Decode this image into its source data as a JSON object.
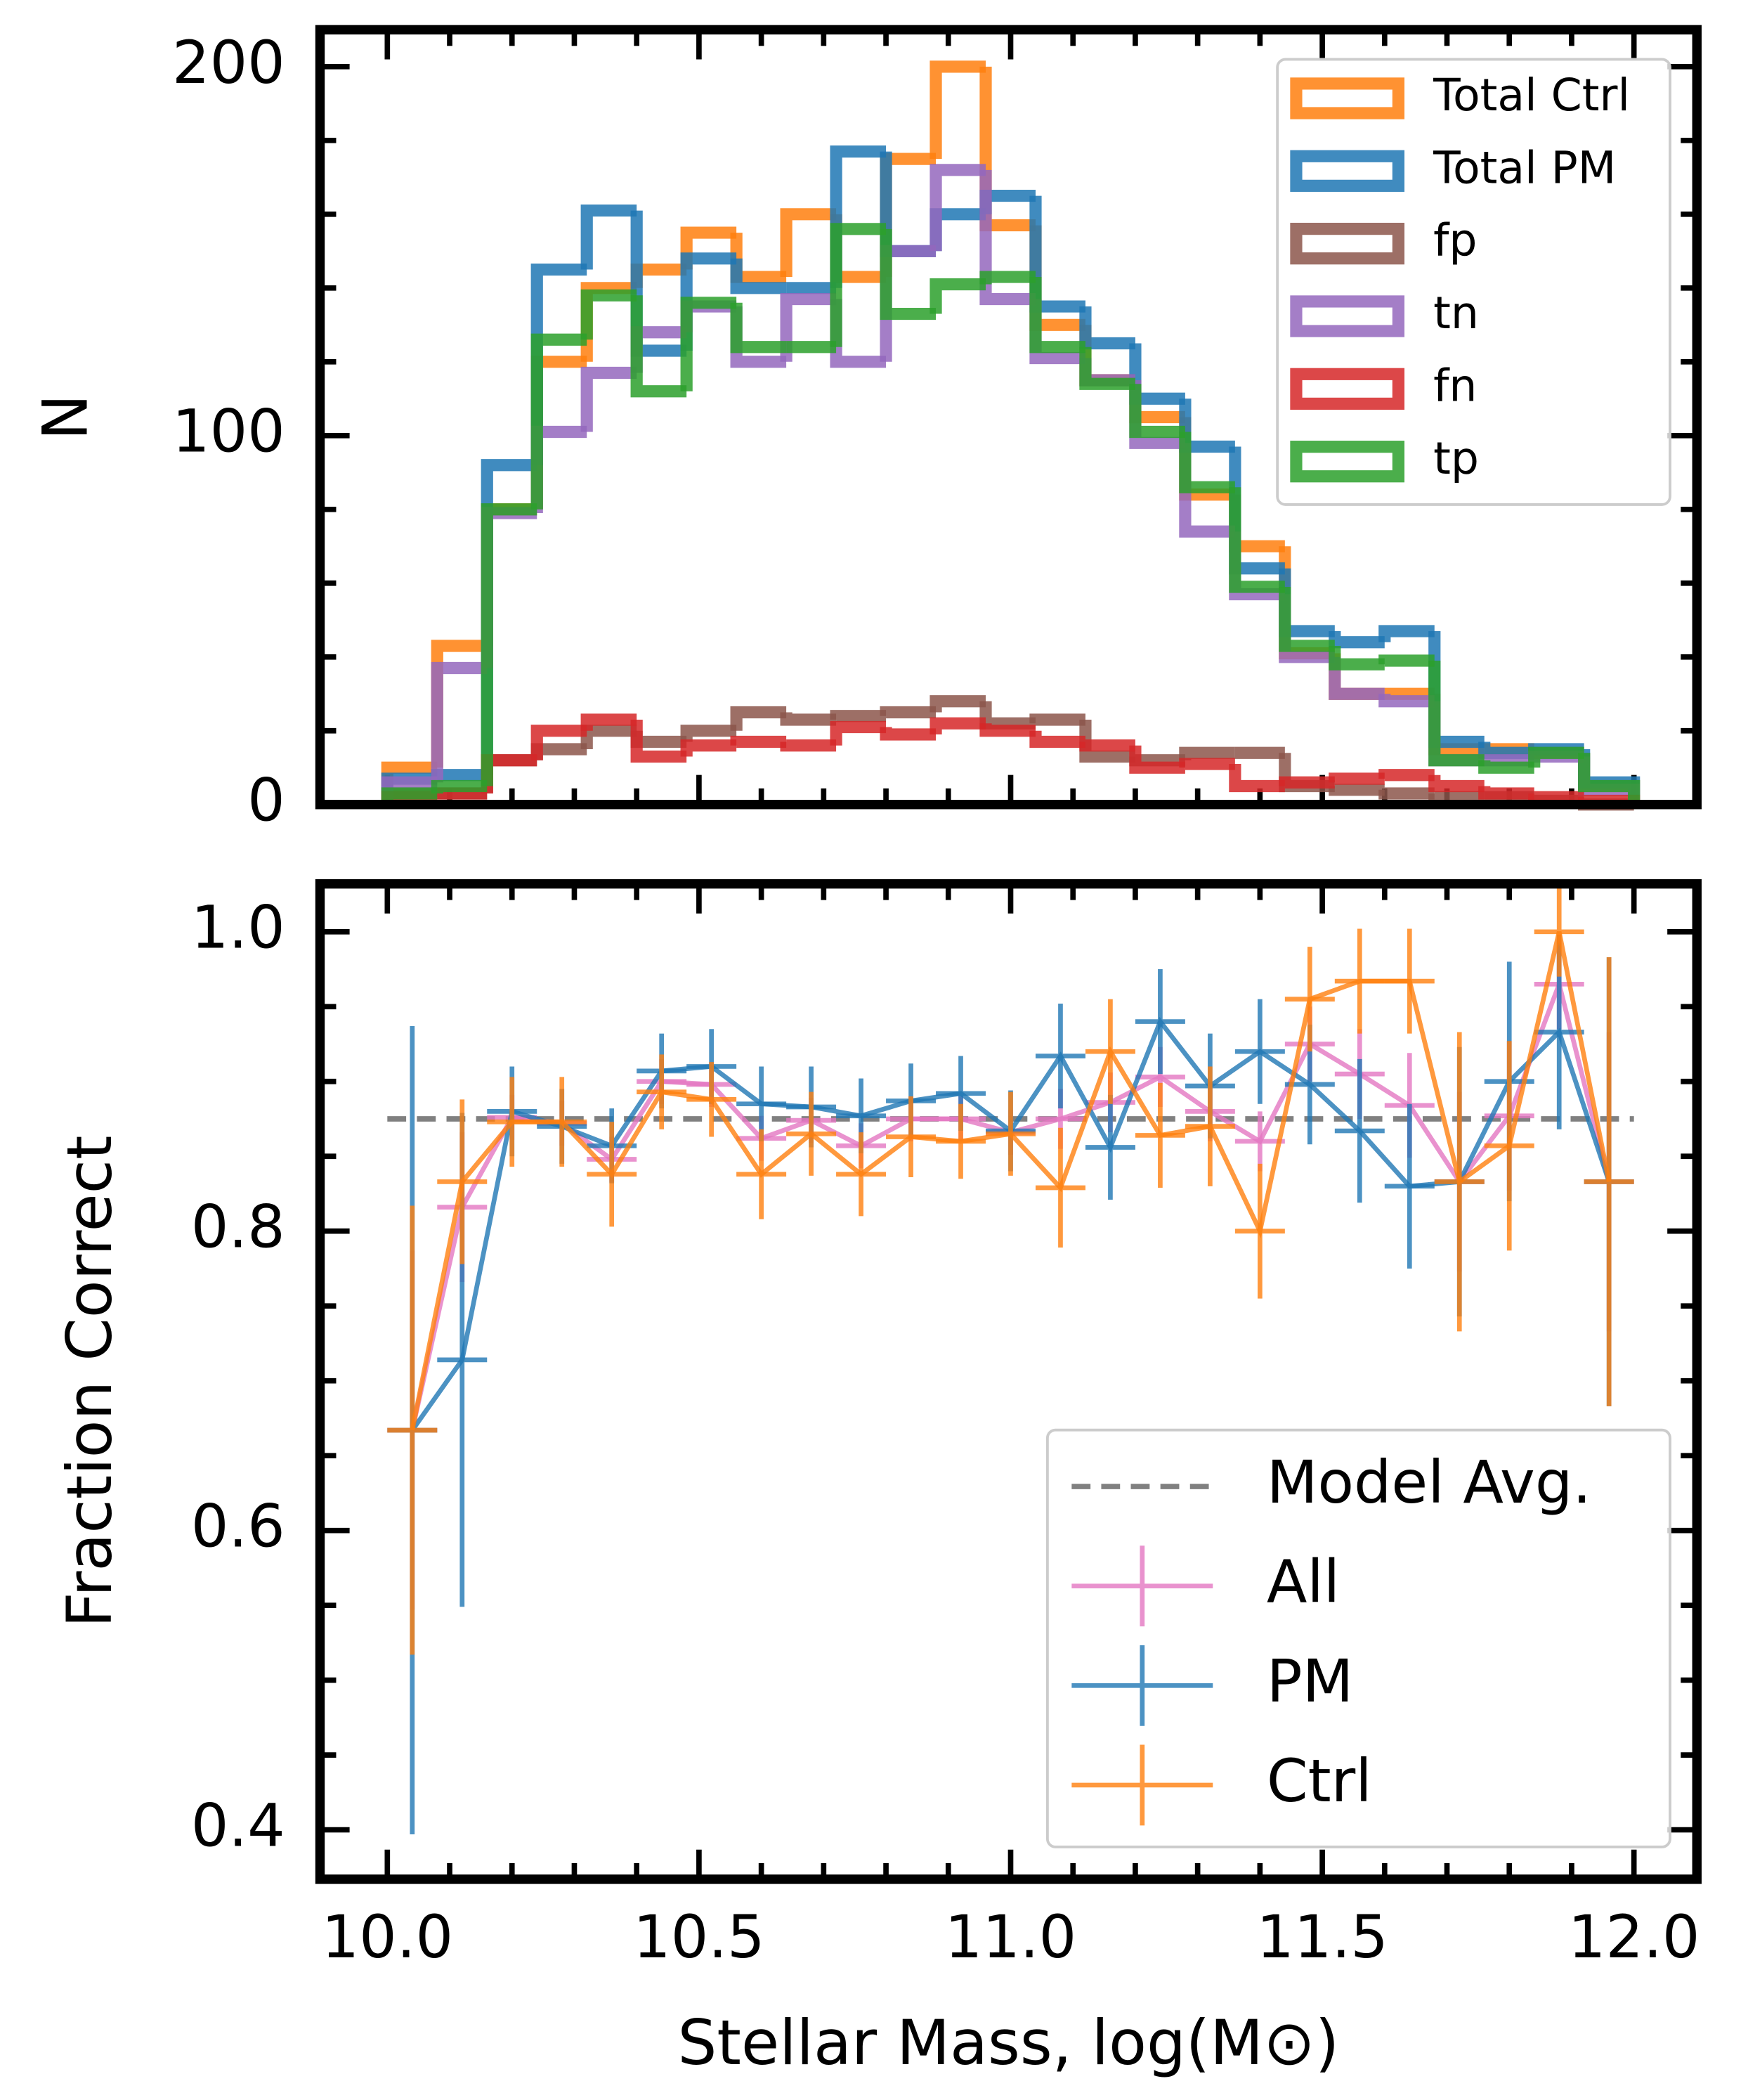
{
  "chart_data": [
    {
      "type": "histogram",
      "ylabel": "N",
      "bins": [
        10.0,
        10.08,
        10.16,
        10.24,
        10.32,
        10.4,
        10.48,
        10.56,
        10.64,
        10.72,
        10.8,
        10.88,
        10.96,
        11.04,
        11.12,
        11.2,
        11.28,
        11.36,
        11.44,
        11.52,
        11.6,
        11.68,
        11.76,
        11.84,
        11.92,
        12.0
      ],
      "series": [
        {
          "name": "Total Ctrl",
          "color": "#ff7f0e",
          "values": [
            10,
            43,
            80,
            120,
            140,
            145,
            155,
            143,
            160,
            143,
            175,
            200,
            157,
            130,
            115,
            105,
            84,
            70,
            41,
            30,
            30,
            15,
            15,
            14,
            5
          ]
        },
        {
          "name": "Total PM",
          "color": "#1f77b4",
          "values": [
            7,
            8,
            92,
            145,
            161,
            123,
            148,
            140,
            140,
            177,
            150,
            160,
            165,
            135,
            125,
            110,
            97,
            64,
            47,
            44,
            47,
            17,
            14,
            15,
            6
          ]
        },
        {
          "name": "fp",
          "color": "#8c564b",
          "values": [
            3,
            3,
            12,
            15,
            20,
            17,
            20,
            25,
            23,
            24,
            25,
            28,
            22,
            23,
            13,
            12,
            14,
            14,
            5,
            4,
            3,
            2,
            2,
            1,
            0
          ]
        },
        {
          "name": "tn",
          "color": "#9467bd",
          "values": [
            6,
            37,
            79,
            101,
            117,
            128,
            135,
            120,
            137,
            120,
            150,
            172,
            137,
            121,
            115,
            98,
            74,
            57,
            40,
            30,
            28,
            12,
            12,
            13,
            4
          ]
        },
        {
          "name": "fn",
          "color": "#d62728",
          "values": [
            2,
            3,
            12,
            20,
            23,
            13,
            16,
            17,
            16,
            21,
            19,
            22,
            20,
            17,
            16,
            10,
            11,
            5,
            6,
            7,
            8,
            5,
            3,
            2,
            1
          ]
        },
        {
          "name": "tp",
          "color": "#2ca02c",
          "values": [
            3,
            5,
            80,
            126,
            138,
            112,
            136,
            124,
            124,
            156,
            133,
            141,
            143,
            124,
            114,
            101,
            86,
            59,
            43,
            38,
            39,
            12,
            10,
            14,
            5
          ]
        }
      ],
      "xlim": [
        9.892,
        12.101
      ],
      "ylim": [
        0,
        210
      ],
      "xticks": [
        10,
        10.5,
        11,
        11.5,
        12
      ],
      "x_minor_ticks": [
        10.1,
        10.2,
        10.3,
        10.4,
        10.6,
        10.7,
        10.8,
        10.9,
        11.1,
        11.2,
        11.3,
        11.4,
        11.6,
        11.7,
        11.8,
        11.9
      ],
      "yticks": [
        0,
        100,
        200
      ],
      "y_minor_ticks": [
        20,
        40,
        60,
        80,
        120,
        140,
        160,
        180
      ],
      "legend": "upper right"
    },
    {
      "type": "errorbar",
      "xlabel": "Stellar Mass, log(M⊙)",
      "ylabel": "Fraction Correct",
      "x": [
        10.04,
        10.12,
        10.2,
        10.28,
        10.36,
        10.44,
        10.52,
        10.6,
        10.68,
        10.76,
        10.84,
        10.92,
        11.0,
        11.08,
        11.16,
        11.24,
        11.32,
        11.4,
        11.48,
        11.56,
        11.64,
        11.72,
        11.8,
        11.88,
        11.96
      ],
      "xerr": 0.04,
      "series": [
        {
          "name": "All",
          "color": "#e377c2",
          "values": [
            0.667,
            0.816,
            0.876,
            0.872,
            0.848,
            0.9,
            0.898,
            0.862,
            0.874,
            0.857,
            0.875,
            0.875,
            0.866,
            0.875,
            0.886,
            0.903,
            0.88,
            0.86,
            0.925,
            0.905,
            0.884,
            0.833,
            0.877,
            0.965,
            0.833
          ],
          "errors": [
            0.12,
            0.05,
            0.015,
            0.015,
            0.015,
            0.015,
            0.015,
            0.015,
            0.015,
            0.015,
            0.015,
            0.015,
            0.015,
            0.02,
            0.02,
            0.02,
            0.02,
            0.02,
            0.025,
            0.03,
            0.035,
            0.06,
            0.05,
            0.03,
            0.1
          ]
        },
        {
          "name": "PM",
          "color": "#1f77b4",
          "values": [
            0.667,
            0.714,
            0.88,
            0.87,
            0.857,
            0.907,
            0.91,
            0.885,
            0.883,
            0.877,
            0.887,
            0.892,
            0.867,
            0.917,
            0.856,
            0.94,
            0.897,
            0.92,
            0.898,
            0.867,
            0.83,
            0.833,
            0.9,
            0.933,
            0.833
          ],
          "errors": [
            0.27,
            0.165,
            0.03,
            0.025,
            0.025,
            0.025,
            0.025,
            0.025,
            0.027,
            0.025,
            0.025,
            0.025,
            0.027,
            0.035,
            0.035,
            0.035,
            0.035,
            0.035,
            0.04,
            0.048,
            0.055,
            0.09,
            0.08,
            0.065,
            0.15
          ]
        },
        {
          "name": "Ctrl",
          "color": "#ff7f0e",
          "values": [
            0.667,
            0.833,
            0.873,
            0.873,
            0.838,
            0.893,
            0.888,
            0.838,
            0.865,
            0.838,
            0.863,
            0.86,
            0.865,
            0.829,
            0.92,
            0.864,
            0.87,
            0.8,
            0.955,
            0.967,
            0.967,
            0.833,
            0.857,
            1.0,
            0.833
          ],
          "errors": [
            0.15,
            0.055,
            0.03,
            0.03,
            0.035,
            0.025,
            0.025,
            0.03,
            0.028,
            0.028,
            0.027,
            0.025,
            0.028,
            0.04,
            0.035,
            0.035,
            0.04,
            0.045,
            0.035,
            0.035,
            0.035,
            0.1,
            0.07,
            0.03,
            0.15
          ]
        }
      ],
      "reference_line": {
        "name": "Model Avg.",
        "value": 0.875,
        "color": "#808080"
      },
      "xlim": [
        9.892,
        12.101
      ],
      "ylim": [
        0.367,
        1.032
      ],
      "xticks": [
        {
          "value": 10,
          "label": "10.0"
        },
        10.5,
        {
          "value": 11,
          "label": "11.0"
        },
        11.5,
        {
          "value": 12,
          "label": "12.0"
        }
      ],
      "x_minor_ticks": [
        10.1,
        10.2,
        10.3,
        10.4,
        10.6,
        10.7,
        10.8,
        10.9,
        11.1,
        11.2,
        11.3,
        11.4,
        11.6,
        11.7,
        11.8,
        11.9
      ],
      "yticks": [
        0.4,
        0.6,
        0.8,
        {
          "value": 1,
          "label": "1.0"
        }
      ],
      "y_minor_ticks": [
        0.45,
        0.5,
        0.55,
        0.65,
        0.7,
        0.75,
        0.85,
        0.9,
        0.95
      ],
      "legend": "lower right"
    }
  ]
}
